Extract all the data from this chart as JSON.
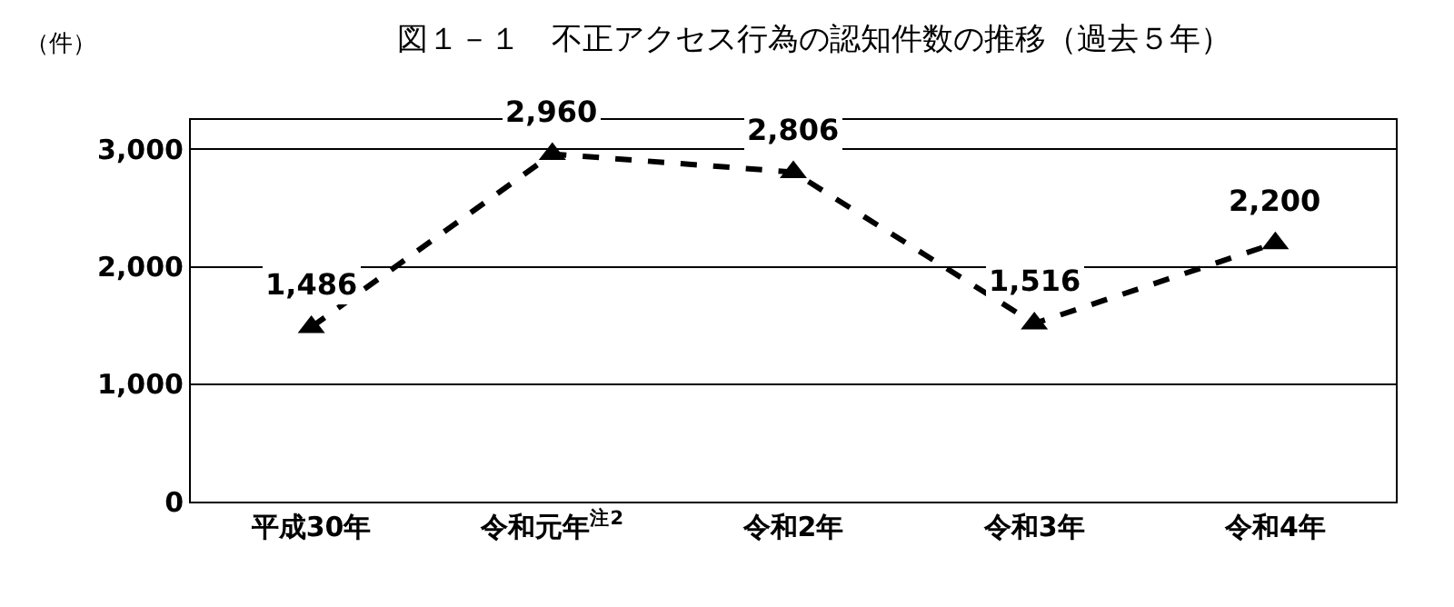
{
  "chart_data": {
    "type": "line",
    "title": "図１－１　不正アクセス行為の認知件数の推移（過去５年）",
    "ylabel": "（件）",
    "categories": [
      "平成30年",
      "令和元年$^{注2}$",
      "令和2年",
      "令和3年",
      "令和4年"
    ],
    "series": [
      {
        "color": "#000000",
        "values": [
          1486,
          2960,
          2806,
          1516,
          2200
        ],
        "value_labels": [
          "1,486",
          "2,960",
          "2,806",
          "1,516",
          "2,200"
        ]
      }
    ],
    "ylim": [
      0,
      3250
    ],
    "yticks": [
      0,
      {
        "value": 1000,
        "label": "1,000"
      },
      {
        "value": 2000,
        "label": "2,000"
      },
      {
        "value": 3000,
        "label": "3,000"
      }
    ],
    "grid": "y",
    "marker": "triangle",
    "line_style": "dashed",
    "legend": false
  }
}
